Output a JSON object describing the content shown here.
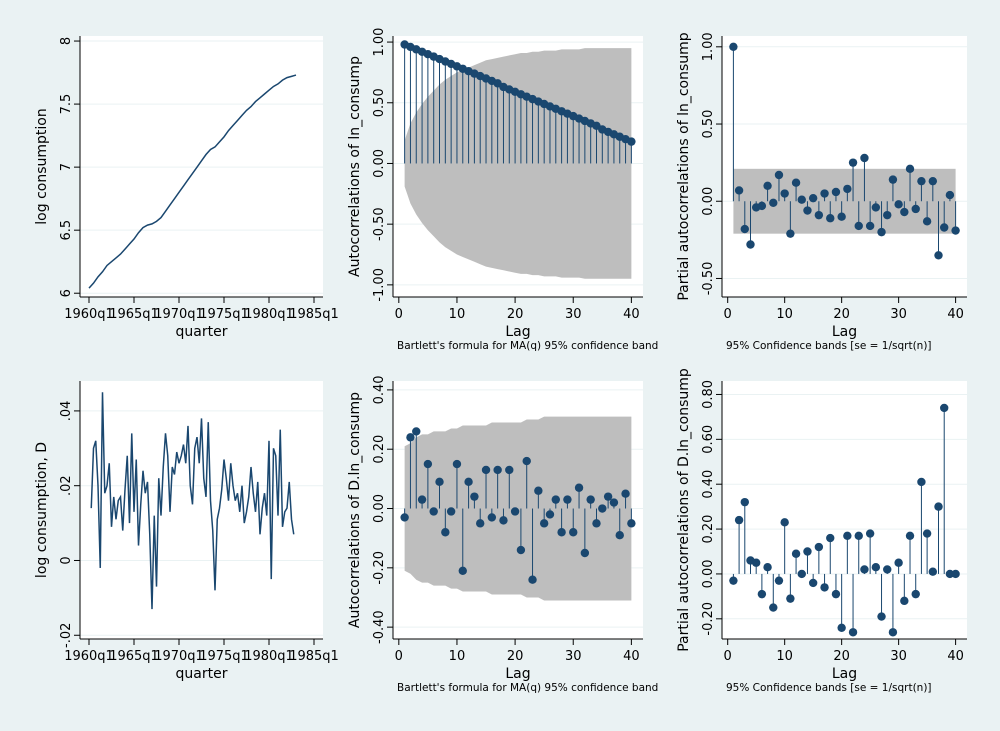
{
  "colors": {
    "background": "#eaf2f3",
    "plot": "#ffffff",
    "series": "#1a476f",
    "band": "#bebebe"
  },
  "chart_data": [
    {
      "type": "line",
      "ylabel": "log consumption",
      "xlabel": "quarter",
      "x_ticks": [
        "1960q1",
        "1965q1",
        "1970q1",
        "1975q1",
        "1980q1",
        "1985q1"
      ],
      "y_ticks": [
        "6",
        "6.5",
        "7",
        "7.5",
        "8"
      ],
      "xlim": [
        1959,
        1986
      ],
      "ylim": [
        5.97,
        8.04
      ],
      "x": [
        1960.0,
        1960.5,
        1961.0,
        1961.5,
        1962.0,
        1962.5,
        1963.0,
        1963.5,
        1964.0,
        1964.5,
        1965.0,
        1965.5,
        1966.0,
        1966.5,
        1967.0,
        1967.5,
        1968.0,
        1968.5,
        1969.0,
        1969.5,
        1970.0,
        1970.5,
        1971.0,
        1971.5,
        1972.0,
        1972.5,
        1973.0,
        1973.5,
        1974.0,
        1974.5,
        1975.0,
        1975.5,
        1976.0,
        1976.5,
        1977.0,
        1977.5,
        1978.0,
        1978.5,
        1979.0,
        1979.5,
        1980.0,
        1980.5,
        1981.0,
        1981.5,
        1982.0,
        1982.5,
        1983.0
      ],
      "y": [
        6.04,
        6.08,
        6.13,
        6.17,
        6.22,
        6.25,
        6.28,
        6.31,
        6.35,
        6.39,
        6.43,
        6.48,
        6.52,
        6.54,
        6.55,
        6.57,
        6.6,
        6.65,
        6.7,
        6.75,
        6.8,
        6.85,
        6.9,
        6.95,
        7.0,
        7.05,
        7.1,
        7.14,
        7.16,
        7.2,
        7.24,
        7.29,
        7.33,
        7.37,
        7.41,
        7.45,
        7.48,
        7.52,
        7.55,
        7.58,
        7.61,
        7.64,
        7.66,
        7.69,
        7.71,
        7.72,
        7.73
      ]
    },
    {
      "type": "bar",
      "title": "",
      "ylabel": "Autocorrelations of ln_consump",
      "xlabel": "Lag",
      "note": "Bartlett's formula for MA(q) 95% confidence bands",
      "x_ticks": [
        "0",
        "10",
        "20",
        "30",
        "40"
      ],
      "y_ticks": [
        "-1.00",
        "-0.50",
        "0.00",
        "0.50",
        "1.00"
      ],
      "xlim": [
        -1,
        42
      ],
      "ylim": [
        -1.1,
        1.05
      ],
      "lags": [
        1,
        2,
        3,
        4,
        5,
        6,
        7,
        8,
        9,
        10,
        11,
        12,
        13,
        14,
        15,
        16,
        17,
        18,
        19,
        20,
        21,
        22,
        23,
        24,
        25,
        26,
        27,
        28,
        29,
        30,
        31,
        32,
        33,
        34,
        35,
        36,
        37,
        38,
        39,
        40
      ],
      "values": [
        0.98,
        0.96,
        0.94,
        0.92,
        0.9,
        0.88,
        0.86,
        0.84,
        0.82,
        0.8,
        0.78,
        0.76,
        0.74,
        0.72,
        0.7,
        0.68,
        0.66,
        0.63,
        0.61,
        0.59,
        0.57,
        0.55,
        0.53,
        0.51,
        0.49,
        0.47,
        0.45,
        0.43,
        0.41,
        0.39,
        0.37,
        0.35,
        0.33,
        0.31,
        0.28,
        0.26,
        0.24,
        0.22,
        0.2,
        0.18
      ],
      "band": [
        0.19,
        0.33,
        0.42,
        0.49,
        0.55,
        0.6,
        0.65,
        0.69,
        0.72,
        0.75,
        0.77,
        0.79,
        0.81,
        0.83,
        0.85,
        0.86,
        0.87,
        0.88,
        0.89,
        0.9,
        0.91,
        0.91,
        0.92,
        0.92,
        0.93,
        0.93,
        0.93,
        0.94,
        0.94,
        0.94,
        0.94,
        0.95,
        0.95,
        0.95,
        0.95,
        0.95,
        0.95,
        0.95,
        0.95,
        0.95
      ]
    },
    {
      "type": "bar",
      "title": "",
      "ylabel": "Partial autocorrelations of ln_consump",
      "xlabel": "Lag",
      "note": "95% Confidence bands [se = 1/sqrt(n)]",
      "x_ticks": [
        "0",
        "10",
        "20",
        "30",
        "40"
      ],
      "y_ticks": [
        "-0.50",
        "0.00",
        "0.50",
        "1.00"
      ],
      "xlim": [
        -1,
        42
      ],
      "ylim": [
        -0.62,
        1.07
      ],
      "lags": [
        1,
        2,
        3,
        4,
        5,
        6,
        7,
        8,
        9,
        10,
        11,
        12,
        13,
        14,
        15,
        16,
        17,
        18,
        19,
        20,
        21,
        22,
        23,
        24,
        25,
        26,
        27,
        28,
        29,
        30,
        31,
        32,
        33,
        34,
        35,
        36,
        37,
        38,
        39,
        40
      ],
      "values": [
        1.0,
        0.07,
        -0.18,
        -0.28,
        -0.04,
        -0.03,
        0.1,
        -0.01,
        0.17,
        0.05,
        -0.21,
        0.12,
        0.01,
        -0.06,
        0.02,
        -0.09,
        0.05,
        -0.11,
        0.06,
        -0.1,
        0.08,
        0.25,
        -0.16,
        0.28,
        -0.16,
        -0.04,
        -0.2,
        -0.09,
        0.14,
        -0.02,
        -0.07,
        0.21,
        -0.05,
        0.13,
        -0.13,
        0.13,
        -0.35,
        -0.17,
        0.04,
        -0.19
      ],
      "band": 0.21
    },
    {
      "type": "line",
      "ylabel": "log consumption, D",
      "xlabel": "quarter",
      "x_ticks": [
        "1960q1",
        "1965q1",
        "1970q1",
        "1975q1",
        "1980q1",
        "1985q1"
      ],
      "y_ticks": [
        "-.02",
        "0",
        ".02",
        ".04"
      ],
      "xlim": [
        1959,
        1986
      ],
      "ylim": [
        -0.021,
        0.048
      ],
      "x": [
        1960.25,
        1960.5,
        1960.75,
        1961.0,
        1961.25,
        1961.5,
        1961.75,
        1962.0,
        1962.25,
        1962.5,
        1962.75,
        1963.0,
        1963.25,
        1963.5,
        1963.75,
        1964.0,
        1964.25,
        1964.5,
        1964.75,
        1965.0,
        1965.25,
        1965.5,
        1965.75,
        1966.0,
        1966.25,
        1966.5,
        1966.75,
        1967.0,
        1967.25,
        1967.5,
        1967.75,
        1968.0,
        1968.25,
        1968.5,
        1968.75,
        1969.0,
        1969.25,
        1969.5,
        1969.75,
        1970.0,
        1970.25,
        1970.5,
        1970.75,
        1971.0,
        1971.25,
        1971.5,
        1971.75,
        1972.0,
        1972.25,
        1972.5,
        1972.75,
        1973.0,
        1973.25,
        1973.5,
        1973.75,
        1974.0,
        1974.25,
        1974.5,
        1974.75,
        1975.0,
        1975.25,
        1975.5,
        1975.75,
        1976.0,
        1976.25,
        1976.5,
        1976.75,
        1977.0,
        1977.25,
        1977.5,
        1977.75,
        1978.0,
        1978.25,
        1978.5,
        1978.75,
        1979.0,
        1979.25,
        1979.5,
        1979.75,
        1980.0,
        1980.25,
        1980.5,
        1980.75,
        1981.0,
        1981.25,
        1981.5,
        1981.75,
        1982.0,
        1982.25,
        1982.5,
        1982.75
      ],
      "y": [
        0.014,
        0.03,
        0.032,
        0.02,
        -0.002,
        0.045,
        0.018,
        0.02,
        0.026,
        0.009,
        0.017,
        0.011,
        0.016,
        0.017,
        0.008,
        0.019,
        0.028,
        0.01,
        0.034,
        0.013,
        0.027,
        0.004,
        0.015,
        0.024,
        0.018,
        0.021,
        0.007,
        -0.013,
        0.012,
        -0.007,
        0.022,
        0.012,
        0.025,
        0.034,
        0.028,
        0.013,
        0.025,
        0.023,
        0.029,
        0.026,
        0.028,
        0.031,
        0.026,
        0.036,
        0.02,
        0.015,
        0.03,
        0.033,
        0.026,
        0.038,
        0.022,
        0.017,
        0.037,
        0.016,
        0.008,
        -0.008,
        0.011,
        0.014,
        0.019,
        0.027,
        0.022,
        0.016,
        0.026,
        0.02,
        0.016,
        0.018,
        0.013,
        0.02,
        0.01,
        0.013,
        0.017,
        0.025,
        0.018,
        0.013,
        0.021,
        0.007,
        0.014,
        0.018,
        0.012,
        0.032,
        -0.005,
        0.03,
        0.028,
        0.012,
        0.035,
        0.009,
        0.013,
        0.014,
        0.021,
        0.011,
        0.007
      ]
    },
    {
      "type": "bar",
      "title": "",
      "ylabel": "Autocorrelations of D.ln_consump",
      "xlabel": "Lag",
      "note": "Bartlett's formula for MA(q) 95% confidence bands",
      "x_ticks": [
        "0",
        "10",
        "20",
        "30",
        "40"
      ],
      "y_ticks": [
        "-0.40",
        "-0.20",
        "0.00",
        "0.20",
        "0.40"
      ],
      "xlim": [
        -1,
        42
      ],
      "ylim": [
        -0.44,
        0.43
      ],
      "lags": [
        1,
        2,
        3,
        4,
        5,
        6,
        7,
        8,
        9,
        10,
        11,
        12,
        13,
        14,
        15,
        16,
        17,
        18,
        19,
        20,
        21,
        22,
        23,
        24,
        25,
        26,
        27,
        28,
        29,
        30,
        31,
        32,
        33,
        34,
        35,
        36,
        37,
        38,
        39,
        40
      ],
      "values": [
        -0.03,
        0.24,
        0.26,
        0.03,
        0.15,
        -0.01,
        0.09,
        -0.08,
        -0.01,
        0.15,
        -0.21,
        0.09,
        0.04,
        -0.05,
        0.13,
        -0.03,
        0.13,
        -0.04,
        0.13,
        -0.01,
        -0.14,
        0.16,
        -0.24,
        0.06,
        -0.05,
        -0.02,
        0.03,
        -0.08,
        0.03,
        -0.08,
        0.07,
        -0.15,
        0.03,
        -0.05,
        0.0,
        0.04,
        0.02,
        -0.09,
        0.05,
        -0.05
      ],
      "band": [
        0.21,
        0.22,
        0.24,
        0.25,
        0.25,
        0.26,
        0.26,
        0.26,
        0.27,
        0.27,
        0.28,
        0.28,
        0.28,
        0.28,
        0.28,
        0.29,
        0.29,
        0.29,
        0.29,
        0.29,
        0.29,
        0.3,
        0.3,
        0.3,
        0.31,
        0.31,
        0.31,
        0.31,
        0.31,
        0.31,
        0.31,
        0.31,
        0.31,
        0.31,
        0.31,
        0.31,
        0.31,
        0.31,
        0.31,
        0.31
      ]
    },
    {
      "type": "bar",
      "title": "",
      "ylabel": "Partial autocorrelations of D.ln_consump",
      "xlabel": "Lag",
      "note": "95% Confidence bands [se = 1/sqrt(n)]",
      "x_ticks": [
        "0",
        "10",
        "20",
        "30",
        "40"
      ],
      "y_ticks": [
        "-0.20",
        "0.00",
        "0.20",
        "0.40",
        "0.60",
        "0.80"
      ],
      "xlim": [
        -1,
        42
      ],
      "ylim": [
        -0.29,
        0.86
      ],
      "lags": [
        1,
        2,
        3,
        4,
        5,
        6,
        7,
        8,
        9,
        10,
        11,
        12,
        13,
        14,
        15,
        16,
        17,
        18,
        19,
        20,
        21,
        22,
        23,
        24,
        25,
        26,
        27,
        28,
        29,
        30,
        31,
        32,
        33,
        34,
        35,
        36,
        37,
        38,
        39,
        40
      ],
      "values": [
        -0.03,
        0.24,
        0.32,
        0.06,
        0.05,
        -0.09,
        0.03,
        -0.15,
        -0.03,
        0.23,
        -0.11,
        0.09,
        0.0,
        0.1,
        -0.04,
        0.12,
        -0.06,
        0.16,
        -0.09,
        -0.24,
        0.17,
        -0.26,
        0.17,
        0.02,
        0.18,
        0.03,
        -0.19,
        0.02,
        -0.26,
        0.05,
        -0.12,
        0.17,
        -0.09,
        0.41,
        0.18,
        0.01,
        0.3,
        0.74,
        0.0,
        0.0
      ]
    }
  ]
}
